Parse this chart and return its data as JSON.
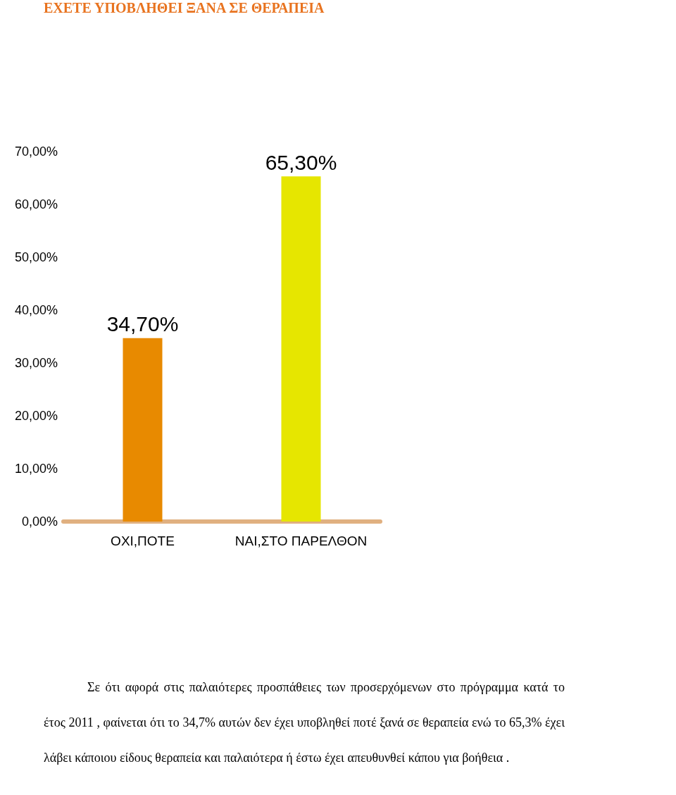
{
  "chart_data": {
    "type": "bar",
    "title": "ΕΧΕΤΕ ΥΠΟΒΛΗΘΕΙ ΞΑΝΑ ΣΕ ΘΕΡΑΠΕΙΑ",
    "categories": [
      "ΟΧΙ,ΠΟΤΕ",
      "ΝΑΙ,ΣΤΟ ΠΑΡΕΛΘΟΝ"
    ],
    "values": [
      34.7,
      65.3
    ],
    "colors": [
      "#e88a00",
      "#e6e600"
    ],
    "value_labels": [
      "34,70%",
      "65,30%"
    ],
    "ylim": [
      0,
      70
    ],
    "yticks": [
      {
        "value": 0,
        "label": "0,00%"
      },
      {
        "value": 10,
        "label": "10,00%"
      },
      {
        "value": 20,
        "label": "20,00%"
      },
      {
        "value": 30,
        "label": "30,00%"
      },
      {
        "value": 40,
        "label": "40,00%"
      },
      {
        "value": 50,
        "label": "50,00%"
      },
      {
        "value": 60,
        "label": "60,00%"
      },
      {
        "value": 70,
        "label": "70,00%"
      }
    ],
    "grid": false,
    "annotations": [
      "Σε ότι αφορά στις παλαιότερες προσπάθειες των προσερχόμενων στο πρόγραμμα κατά το έτος 2011 , φαίνεται ότι το 34,7% αυτών δεν έχει υποβληθεί ποτέ ξανά σε θεραπεία ενώ το 65,3% έχει λάβει κάποιου είδους θεραπεία και παλαιότερα ή έστω έχει απευθυνθεί κάπου για βοήθεια ."
    ]
  }
}
